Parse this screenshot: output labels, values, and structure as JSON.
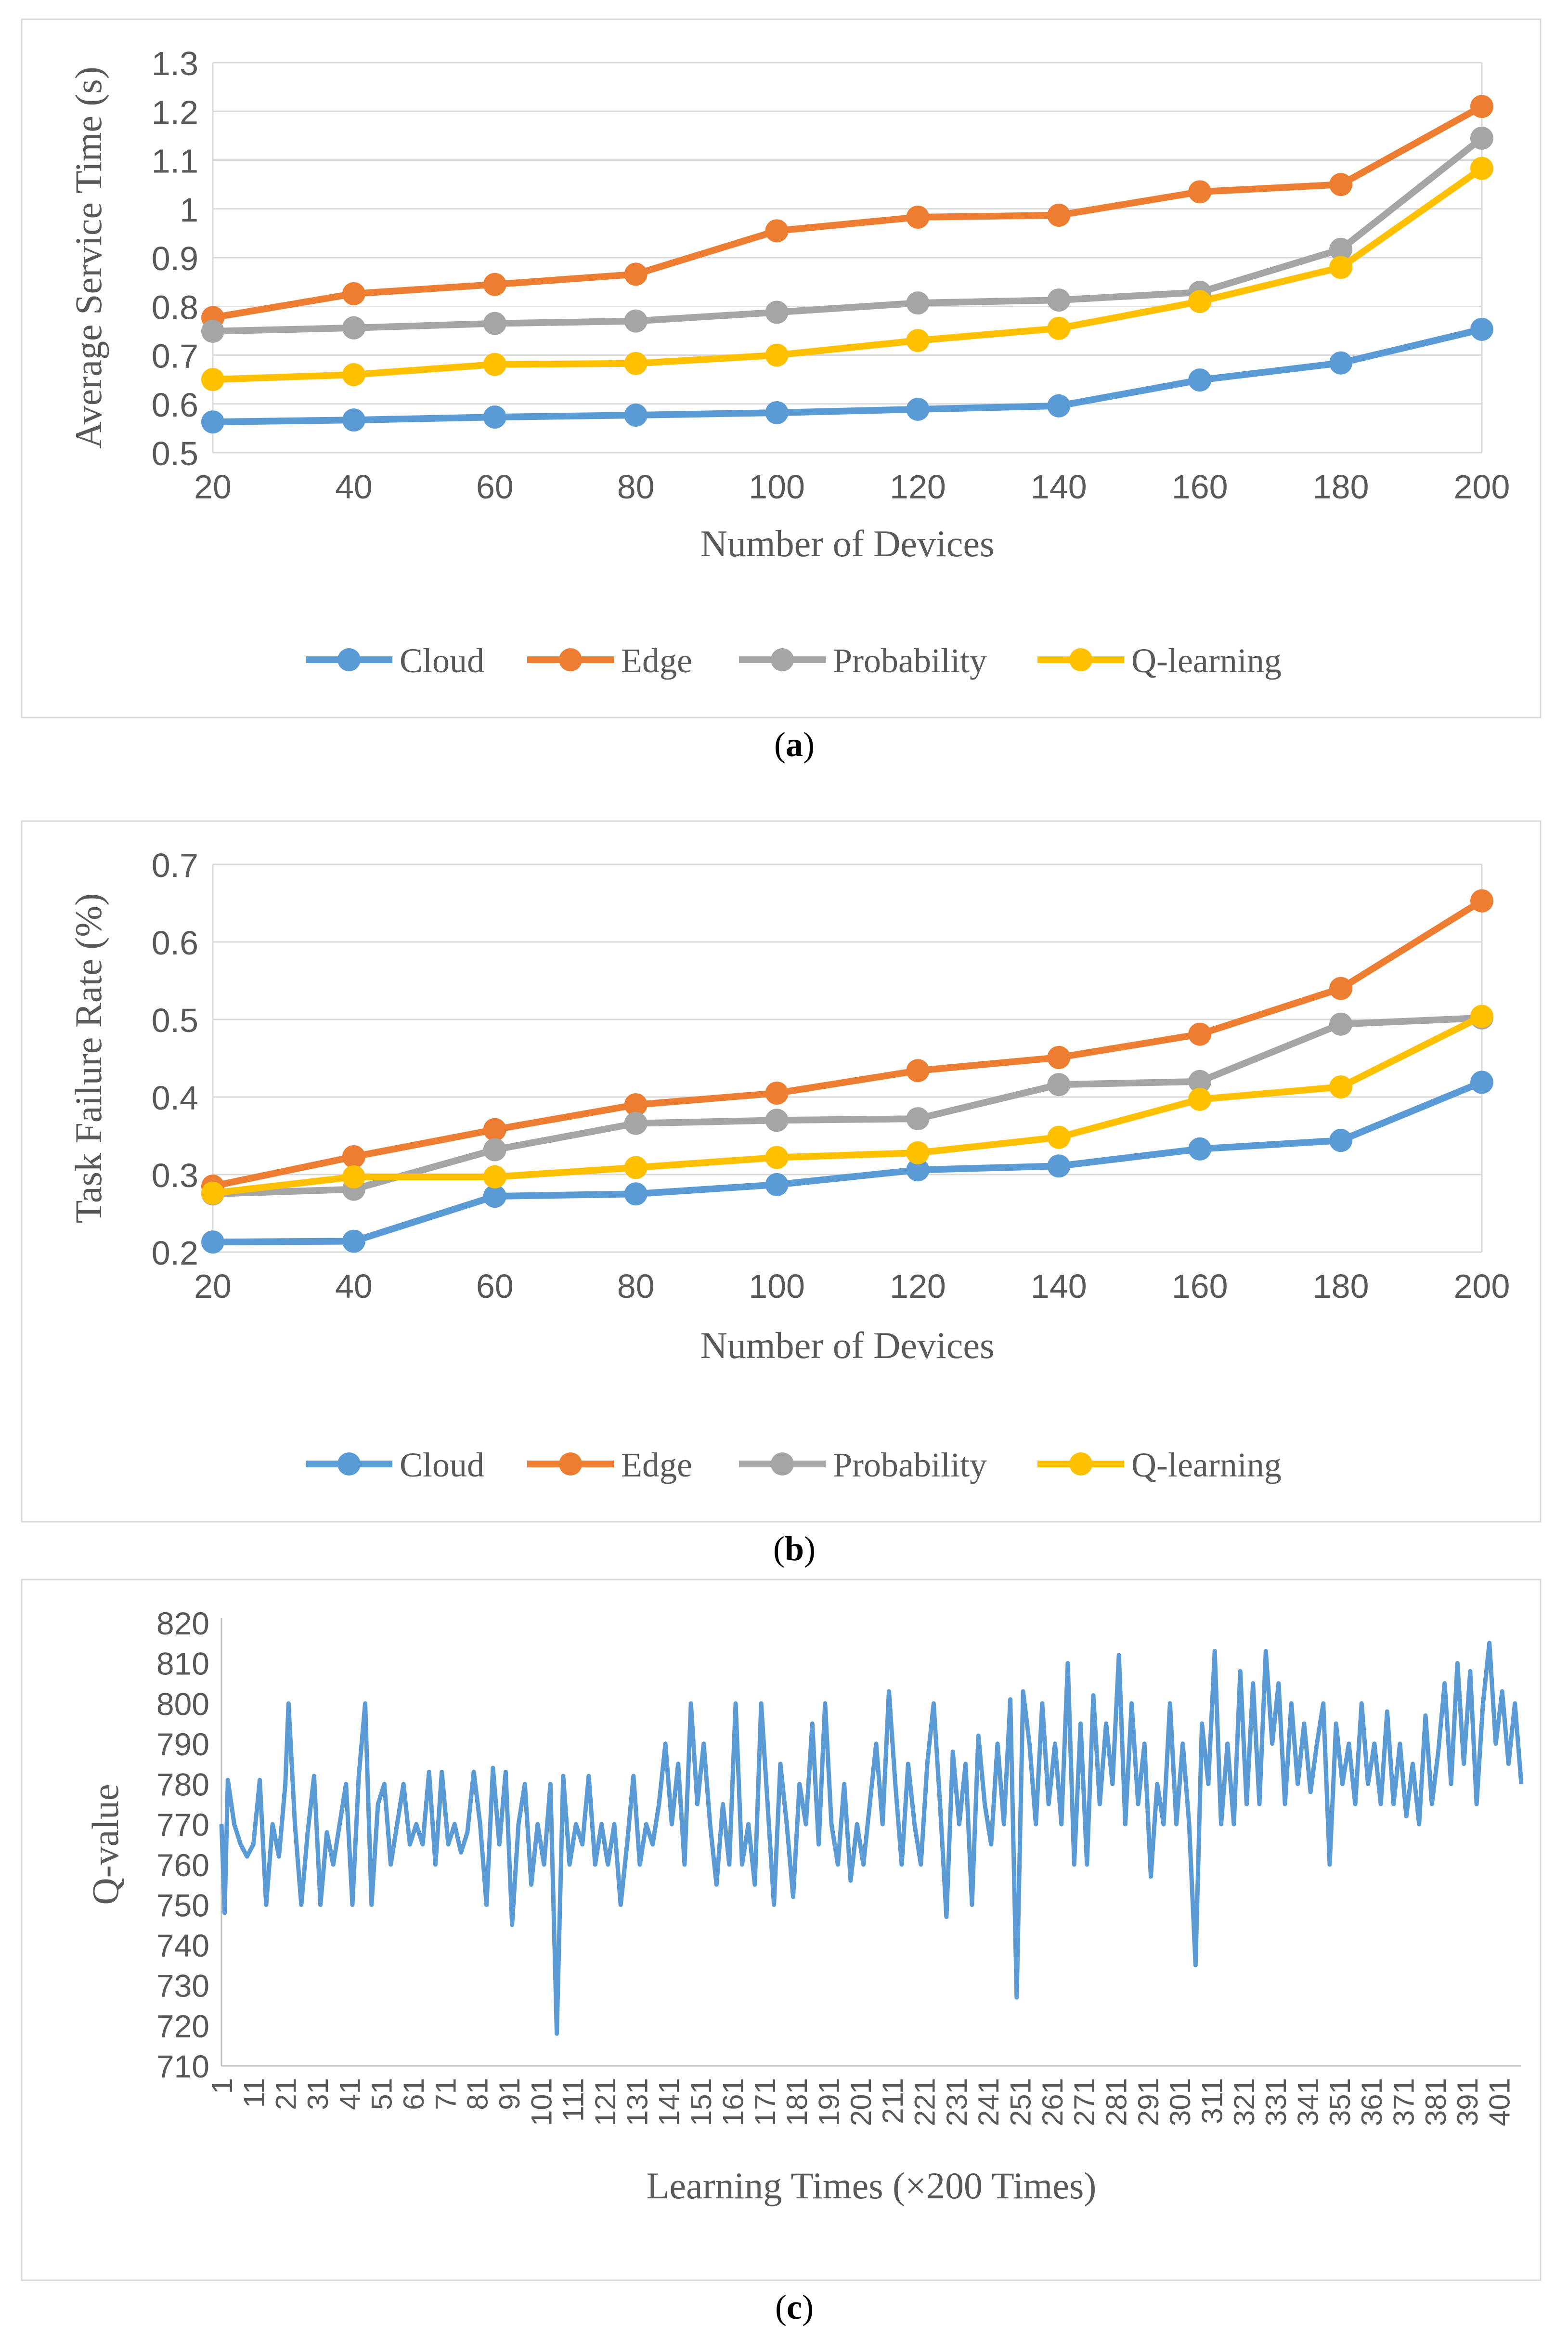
{
  "chart_data": [
    {
      "type": "line",
      "caption": "a",
      "x": [
        20,
        40,
        60,
        80,
        100,
        120,
        140,
        160,
        180,
        200
      ],
      "xlabel": "Number of Devices",
      "ylabel": "Average Service Time (s)",
      "ylim": [
        0.5,
        1.3
      ],
      "yticks": [
        "0.5",
        "0.6",
        "0.7",
        "0.8",
        "0.9",
        "1",
        "1.1",
        "1.2",
        "1.3"
      ],
      "grid": true,
      "legend": "bottom",
      "series": [
        {
          "name": "Cloud",
          "color": "#5b9bd5",
          "values": [
            0.563,
            0.567,
            0.573,
            0.577,
            0.582,
            0.589,
            0.596,
            0.649,
            0.684,
            0.753
          ]
        },
        {
          "name": "Edge",
          "color": "#ed7d31",
          "values": [
            0.777,
            0.826,
            0.845,
            0.866,
            0.955,
            0.983,
            0.987,
            1.035,
            1.05,
            1.21
          ]
        },
        {
          "name": "Probability",
          "color": "#a5a5a5",
          "values": [
            0.749,
            0.756,
            0.765,
            0.77,
            0.788,
            0.807,
            0.813,
            0.829,
            0.917,
            1.145
          ]
        },
        {
          "name": "Q-learning",
          "color": "#ffc000",
          "values": [
            0.65,
            0.66,
            0.681,
            0.683,
            0.7,
            0.73,
            0.755,
            0.81,
            0.88,
            1.083
          ]
        }
      ]
    },
    {
      "type": "line",
      "caption": "b",
      "x": [
        20,
        40,
        60,
        80,
        100,
        120,
        140,
        160,
        180,
        200
      ],
      "xlabel": "Number of Devices",
      "ylabel": "Task Failure Rate (%)",
      "ylim": [
        0.2,
        0.7
      ],
      "yticks": [
        "0.2",
        "0.3",
        "0.4",
        "0.5",
        "0.6",
        "0.7"
      ],
      "grid": true,
      "legend": "bottom",
      "series": [
        {
          "name": "Cloud",
          "color": "#5b9bd5",
          "values": [
            0.213,
            0.214,
            0.272,
            0.275,
            0.287,
            0.306,
            0.311,
            0.333,
            0.344,
            0.419
          ]
        },
        {
          "name": "Edge",
          "color": "#ed7d31",
          "values": [
            0.285,
            0.323,
            0.358,
            0.39,
            0.405,
            0.434,
            0.451,
            0.481,
            0.54,
            0.653
          ]
        },
        {
          "name": "Probability",
          "color": "#a5a5a5",
          "values": [
            0.275,
            0.281,
            0.332,
            0.366,
            0.37,
            0.372,
            0.416,
            0.42,
            0.494,
            0.502
          ]
        },
        {
          "name": "Q-learning",
          "color": "#ffc000",
          "values": [
            0.276,
            0.297,
            0.297,
            0.309,
            0.322,
            0.328,
            0.348,
            0.397,
            0.413,
            0.504
          ]
        }
      ]
    },
    {
      "type": "line",
      "caption": "c",
      "xlabel": "Learning Times (×200 Times)",
      "ylabel": "Q-value",
      "xlim": [
        1,
        408
      ],
      "xticks": [
        "1",
        "11",
        "21",
        "31",
        "41",
        "51",
        "61",
        "71",
        "81",
        "91",
        "101",
        "111",
        "121",
        "131",
        "141",
        "151",
        "161",
        "171",
        "181",
        "191",
        "201",
        "211",
        "221",
        "231",
        "241",
        "251",
        "261",
        "271",
        "281",
        "291",
        "301",
        "311",
        "321",
        "331",
        "341",
        "351",
        "361",
        "371",
        "381",
        "391",
        "401"
      ],
      "ylim": [
        710,
        820
      ],
      "yticks": [
        "710",
        "720",
        "730",
        "740",
        "750",
        "760",
        "770",
        "780",
        "790",
        "800",
        "810",
        "820"
      ],
      "grid": false,
      "color": "#5b9bd5",
      "anchors": [
        [
          1,
          770
        ],
        [
          2,
          748
        ],
        [
          3,
          781
        ],
        [
          5,
          770
        ],
        [
          7,
          765
        ],
        [
          9,
          762
        ],
        [
          11,
          765
        ],
        [
          13,
          781
        ],
        [
          15,
          750
        ],
        [
          17,
          770
        ],
        [
          19,
          762
        ],
        [
          21,
          780
        ],
        [
          22,
          800
        ],
        [
          24,
          770
        ],
        [
          26,
          750
        ],
        [
          28,
          768
        ],
        [
          30,
          782
        ],
        [
          32,
          750
        ],
        [
          34,
          768
        ],
        [
          36,
          760
        ],
        [
          38,
          770
        ],
        [
          40,
          780
        ],
        [
          42,
          750
        ],
        [
          44,
          782
        ],
        [
          46,
          800
        ],
        [
          48,
          750
        ],
        [
          50,
          775
        ],
        [
          52,
          780
        ],
        [
          54,
          760
        ],
        [
          56,
          770
        ],
        [
          58,
          780
        ],
        [
          60,
          765
        ],
        [
          62,
          770
        ],
        [
          64,
          765
        ],
        [
          66,
          783
        ],
        [
          68,
          760
        ],
        [
          70,
          783
        ],
        [
          72,
          765
        ],
        [
          74,
          770
        ],
        [
          76,
          763
        ],
        [
          78,
          768
        ],
        [
          80,
          783
        ],
        [
          82,
          770
        ],
        [
          84,
          750
        ],
        [
          86,
          784
        ],
        [
          88,
          765
        ],
        [
          90,
          783
        ],
        [
          92,
          745
        ],
        [
          94,
          770
        ],
        [
          96,
          780
        ],
        [
          98,
          755
        ],
        [
          100,
          770
        ],
        [
          102,
          760
        ],
        [
          104,
          780
        ],
        [
          106,
          718
        ],
        [
          108,
          782
        ],
        [
          110,
          760
        ],
        [
          112,
          770
        ],
        [
          114,
          765
        ],
        [
          116,
          782
        ],
        [
          118,
          760
        ],
        [
          120,
          770
        ],
        [
          122,
          760
        ],
        [
          124,
          770
        ],
        [
          126,
          750
        ],
        [
          128,
          765
        ],
        [
          130,
          782
        ],
        [
          132,
          760
        ],
        [
          134,
          770
        ],
        [
          136,
          765
        ],
        [
          138,
          775
        ],
        [
          140,
          790
        ],
        [
          142,
          770
        ],
        [
          144,
          785
        ],
        [
          146,
          760
        ],
        [
          148,
          800
        ],
        [
          150,
          775
        ],
        [
          152,
          790
        ],
        [
          154,
          770
        ],
        [
          156,
          755
        ],
        [
          158,
          775
        ],
        [
          160,
          760
        ],
        [
          162,
          800
        ],
        [
          164,
          760
        ],
        [
          166,
          770
        ],
        [
          168,
          755
        ],
        [
          170,
          800
        ],
        [
          172,
          775
        ],
        [
          174,
          750
        ],
        [
          176,
          785
        ],
        [
          178,
          770
        ],
        [
          180,
          752
        ],
        [
          182,
          780
        ],
        [
          184,
          770
        ],
        [
          186,
          795
        ],
        [
          188,
          765
        ],
        [
          190,
          800
        ],
        [
          192,
          770
        ],
        [
          194,
          760
        ],
        [
          196,
          780
        ],
        [
          198,
          756
        ],
        [
          200,
          770
        ],
        [
          202,
          760
        ],
        [
          204,
          775
        ],
        [
          206,
          790
        ],
        [
          208,
          770
        ],
        [
          210,
          803
        ],
        [
          212,
          780
        ],
        [
          214,
          760
        ],
        [
          216,
          785
        ],
        [
          218,
          770
        ],
        [
          220,
          760
        ],
        [
          222,
          785
        ],
        [
          224,
          800
        ],
        [
          226,
          775
        ],
        [
          228,
          747
        ],
        [
          230,
          788
        ],
        [
          232,
          770
        ],
        [
          234,
          785
        ],
        [
          236,
          750
        ],
        [
          238,
          792
        ],
        [
          240,
          775
        ],
        [
          242,
          765
        ],
        [
          244,
          790
        ],
        [
          246,
          770
        ],
        [
          248,
          801
        ],
        [
          250,
          727
        ],
        [
          252,
          803
        ],
        [
          254,
          790
        ],
        [
          256,
          770
        ],
        [
          258,
          800
        ],
        [
          260,
          775
        ],
        [
          262,
          790
        ],
        [
          264,
          770
        ],
        [
          266,
          810
        ],
        [
          268,
          760
        ],
        [
          270,
          795
        ],
        [
          272,
          760
        ],
        [
          274,
          802
        ],
        [
          276,
          775
        ],
        [
          278,
          795
        ],
        [
          280,
          780
        ],
        [
          282,
          812
        ],
        [
          284,
          770
        ],
        [
          286,
          800
        ],
        [
          288,
          775
        ],
        [
          290,
          790
        ],
        [
          292,
          757
        ],
        [
          294,
          780
        ],
        [
          296,
          770
        ],
        [
          298,
          800
        ],
        [
          300,
          770
        ],
        [
          302,
          790
        ],
        [
          304,
          770
        ],
        [
          306,
          735
        ],
        [
          308,
          795
        ],
        [
          310,
          780
        ],
        [
          312,
          813
        ],
        [
          314,
          770
        ],
        [
          316,
          790
        ],
        [
          318,
          770
        ],
        [
          320,
          808
        ],
        [
          322,
          775
        ],
        [
          324,
          805
        ],
        [
          326,
          775
        ],
        [
          328,
          813
        ],
        [
          330,
          790
        ],
        [
          332,
          805
        ],
        [
          334,
          775
        ],
        [
          336,
          800
        ],
        [
          338,
          780
        ],
        [
          340,
          795
        ],
        [
          342,
          778
        ],
        [
          344,
          790
        ],
        [
          346,
          800
        ],
        [
          348,
          760
        ],
        [
          350,
          795
        ],
        [
          352,
          780
        ],
        [
          354,
          790
        ],
        [
          356,
          775
        ],
        [
          358,
          800
        ],
        [
          360,
          780
        ],
        [
          362,
          790
        ],
        [
          364,
          775
        ],
        [
          366,
          798
        ],
        [
          368,
          775
        ],
        [
          370,
          790
        ],
        [
          372,
          772
        ],
        [
          374,
          785
        ],
        [
          376,
          770
        ],
        [
          378,
          797
        ],
        [
          380,
          775
        ],
        [
          382,
          788
        ],
        [
          384,
          805
        ],
        [
          386,
          780
        ],
        [
          388,
          810
        ],
        [
          390,
          785
        ],
        [
          392,
          808
        ],
        [
          394,
          775
        ],
        [
          396,
          800
        ],
        [
          398,
          815
        ],
        [
          400,
          790
        ],
        [
          402,
          803
        ],
        [
          404,
          785
        ],
        [
          406,
          800
        ],
        [
          408,
          780
        ]
      ]
    }
  ]
}
